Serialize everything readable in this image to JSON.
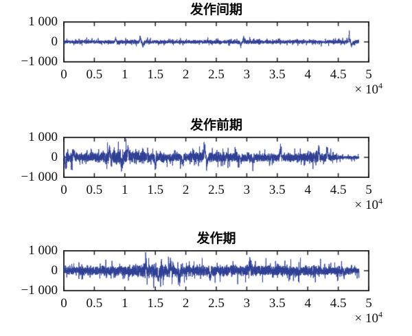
{
  "style": {
    "background": "#ffffff",
    "axis_color": "#1a1a1a",
    "text_color": "#111111",
    "title_color": "#000000"
  },
  "chart_data": [
    {
      "type": "line",
      "title": "发作间期",
      "xlabel": "",
      "ylabel": "",
      "xlim": [
        0,
        5
      ],
      "ylim": [
        -1000,
        1000
      ],
      "x_ticks": [
        "0",
        "0.5",
        "1",
        "1.5",
        "2",
        "2.5",
        "3",
        "3.5",
        "4",
        "4.5",
        "5"
      ],
      "y_tick_labels": [
        "1 000",
        "0",
        "−1 000"
      ],
      "y_tick_values": [
        1000,
        0,
        -1000
      ],
      "x_scale_base": "× 10",
      "x_scale_exp": "4",
      "grid": false,
      "line_color": "#2e3f94",
      "signal": {
        "x_end": 4.84,
        "envelope_x": [
          0,
          0.5,
          1,
          1.5,
          2,
          2.5,
          3,
          3.5,
          4,
          4.5,
          4.84
        ],
        "envelope_amp": [
          115,
          100,
          120,
          105,
          100,
          110,
          125,
          100,
          105,
          115,
          120
        ],
        "spikes": [
          {
            "x": 0.85,
            "v": 260
          },
          {
            "x": 1.25,
            "v": 300
          },
          {
            "x": 1.3,
            "v": -260
          },
          {
            "x": 2.9,
            "v": -280
          },
          {
            "x": 2.95,
            "v": 300
          },
          {
            "x": 4.68,
            "v": 460
          },
          {
            "x": 4.72,
            "v": -240
          }
        ]
      }
    },
    {
      "type": "line",
      "title": "发作前期",
      "xlabel": "",
      "ylabel": "",
      "xlim": [
        0,
        5
      ],
      "ylim": [
        -1000,
        1000
      ],
      "x_ticks": [
        "0",
        "0.5",
        "1",
        "1.5",
        "2",
        "2.5",
        "3",
        "3.5",
        "4",
        "4.5",
        "5"
      ],
      "y_tick_labels": [
        "1 000",
        "0",
        "−1 000"
      ],
      "y_tick_values": [
        1000,
        0,
        -1000
      ],
      "x_scale_base": "× 10",
      "x_scale_exp": "4",
      "grid": false,
      "line_color": "#2e3f94",
      "signal": {
        "x_end": 4.84,
        "envelope_x": [
          0,
          0.1,
          0.3,
          0.6,
          0.75,
          0.9,
          1.1,
          1.3,
          1.5,
          1.8,
          2.1,
          2.4,
          2.7,
          3.0,
          3.3,
          3.6,
          3.9,
          4.1,
          4.3,
          4.5,
          4.6,
          4.84
        ],
        "envelope_amp": [
          430,
          300,
          240,
          260,
          420,
          460,
          430,
          380,
          300,
          260,
          280,
          300,
          280,
          260,
          250,
          240,
          260,
          300,
          280,
          150,
          110,
          100
        ],
        "spikes": [
          {
            "x": 0.03,
            "v": -540
          },
          {
            "x": 0.16,
            "v": 450
          },
          {
            "x": 0.75,
            "v": 620
          },
          {
            "x": 0.95,
            "v": -700
          },
          {
            "x": 1.05,
            "v": 560
          },
          {
            "x": 1.5,
            "v": -600
          },
          {
            "x": 1.95,
            "v": -500
          },
          {
            "x": 2.31,
            "v": 780
          },
          {
            "x": 2.35,
            "v": -450
          },
          {
            "x": 3.1,
            "v": -520
          },
          {
            "x": 3.55,
            "v": 540
          },
          {
            "x": 4.18,
            "v": 620
          },
          {
            "x": 4.32,
            "v": 540
          }
        ]
      }
    },
    {
      "type": "line",
      "title": "发作期",
      "xlabel": "",
      "ylabel": "",
      "xlim": [
        0,
        5
      ],
      "ylim": [
        -1000,
        1000
      ],
      "x_ticks": [
        "0",
        "0.5",
        "1",
        "1.5",
        "2",
        "2.5",
        "3",
        "3.5",
        "4",
        "4.5",
        "5"
      ],
      "y_tick_labels": [
        "1 000",
        "0",
        "−1 000"
      ],
      "y_tick_values": [
        1000,
        0,
        -1000
      ],
      "x_scale_base": "× 10",
      "x_scale_exp": "4",
      "grid": false,
      "line_color": "#2e3f94",
      "signal": {
        "x_end": 4.84,
        "envelope_x": [
          0,
          0.2,
          0.5,
          0.8,
          1.1,
          1.3,
          1.5,
          1.8,
          2.0,
          2.3,
          2.6,
          3.0,
          3.4,
          3.8,
          4.2,
          4.5,
          4.84
        ],
        "envelope_amp": [
          190,
          260,
          280,
          300,
          330,
          400,
          420,
          380,
          340,
          320,
          310,
          330,
          300,
          310,
          280,
          240,
          200
        ],
        "spikes": [
          {
            "x": 1.35,
            "v": 640
          },
          {
            "x": 1.55,
            "v": -660
          },
          {
            "x": 1.75,
            "v": 600
          },
          {
            "x": 1.9,
            "v": -560
          },
          {
            "x": 2.4,
            "v": -560
          },
          {
            "x": 3.05,
            "v": 560
          },
          {
            "x": 4.6,
            "v": -320
          }
        ]
      }
    }
  ]
}
